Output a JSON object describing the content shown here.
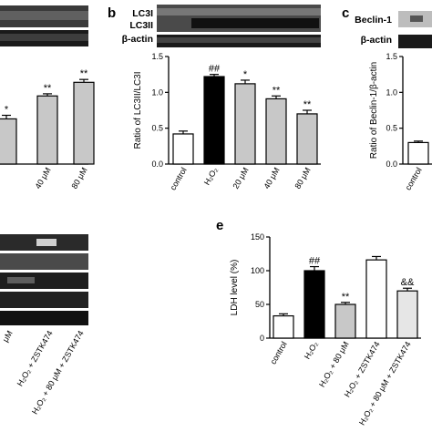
{
  "figure": {
    "panel_labels": [
      "b",
      "c",
      "e"
    ],
    "blot_labels": {
      "b_top": "LC3I",
      "b_mid": "LC3II",
      "b_bottom": "β-actin",
      "c_top": "Beclin-1",
      "c_bottom": "β-actin"
    }
  },
  "chart_data": [
    {
      "id": "a_partial",
      "type": "bar",
      "categories": [
        "",
        "40 μM",
        "80 μM"
      ],
      "values": [
        0.63,
        0.95,
        1.14
      ],
      "errors": [
        0.05,
        0.03,
        0.04
      ],
      "annotations": [
        "*",
        "**",
        "**"
      ],
      "bar_colors": [
        "#c8c8c8",
        "#c8c8c8",
        "#c8c8c8"
      ],
      "ylim": [
        0,
        1.5
      ],
      "title": "",
      "xlabel": "",
      "ylabel": ""
    },
    {
      "id": "b",
      "type": "bar",
      "categories": [
        "control",
        "H₂O₂",
        "20 μM",
        "40 μM",
        "80 μM"
      ],
      "values": [
        0.42,
        1.22,
        1.12,
        0.91,
        0.7
      ],
      "errors": [
        0.04,
        0.03,
        0.05,
        0.04,
        0.05
      ],
      "annotations": [
        "",
        "##",
        "*",
        "**",
        "**"
      ],
      "bar_colors": [
        "#ffffff",
        "#000000",
        "#c8c8c8",
        "#c8c8c8",
        "#c8c8c8"
      ],
      "ylim": [
        0,
        1.5
      ],
      "yticks": [
        "0.0",
        "0.5",
        "1.0",
        "1.5"
      ],
      "title": "",
      "xlabel": "",
      "ylabel": "Ratio of LC3II/LC3I"
    },
    {
      "id": "c",
      "type": "bar",
      "categories": [
        "control"
      ],
      "values": [
        0.3
      ],
      "errors": [
        0.02
      ],
      "annotations": [
        ""
      ],
      "bar_colors": [
        "#ffffff"
      ],
      "ylim": [
        0,
        1.5
      ],
      "yticks": [
        "0.0",
        "0.5",
        "1.0",
        "1.5"
      ],
      "title": "",
      "xlabel": "",
      "ylabel": "Ratio of Beclin-1/β-actin"
    },
    {
      "id": "d_partial",
      "type": "table",
      "categories": [
        "μM",
        "H₂O₂ + ZSTK474",
        "H₂O₂ + 80 μM + ZSTK474"
      ],
      "title": "",
      "xlabel": "",
      "ylabel": ""
    },
    {
      "id": "e",
      "type": "bar",
      "categories": [
        "control",
        "H₂O₂",
        "H₂O₂ + 80 μM",
        "H₂O₂ + ZSTK474",
        "H₂O₂ + 80 μM + ZSTK474"
      ],
      "values": [
        33,
        100,
        50,
        116,
        70
      ],
      "errors": [
        3,
        6,
        3,
        5,
        4
      ],
      "annotations": [
        "",
        "##",
        "**",
        "",
        "&&"
      ],
      "bar_colors": [
        "#ffffff",
        "#000000",
        "#c8c8c8",
        "#ffffff",
        "#e6e6e6"
      ],
      "ylim": [
        0,
        150
      ],
      "yticks": [
        "0",
        "50",
        "100",
        "150"
      ],
      "title": "",
      "xlabel": "",
      "ylabel": "LDH level (%)"
    }
  ]
}
